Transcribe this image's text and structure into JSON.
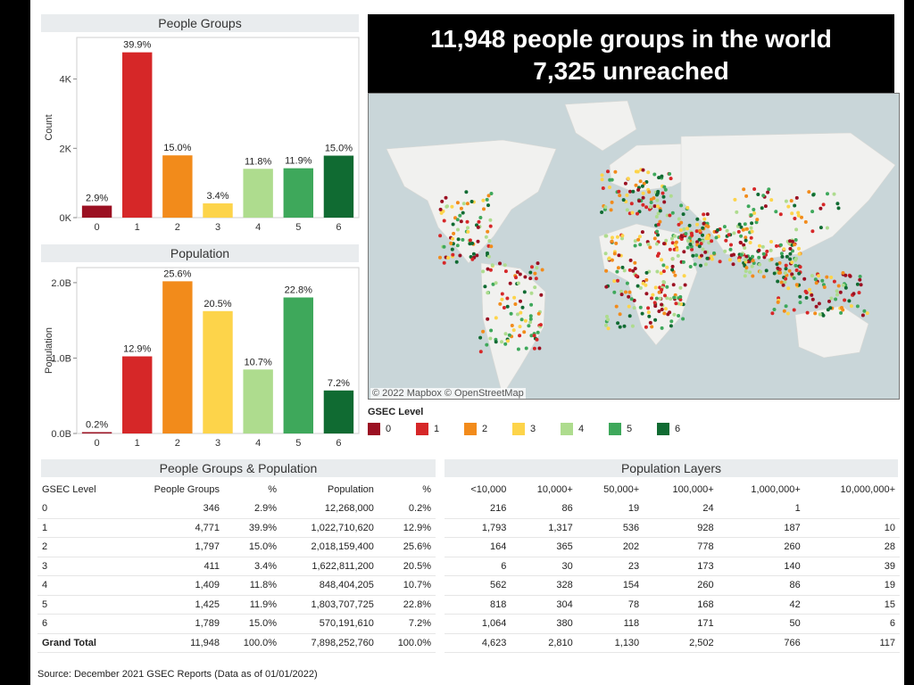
{
  "banner": {
    "line1": "11,948 people groups in the world",
    "line2": "7,325 unreached"
  },
  "colors": {
    "0": "#9b1022",
    "1": "#d62728",
    "2": "#f28b1b",
    "3": "#fdd44a",
    "4": "#aedc8e",
    "5": "#3ea85b",
    "6": "#106b32"
  },
  "chart_data": [
    {
      "type": "bar",
      "title": "People Groups",
      "ylabel": "Count",
      "xlabel": "",
      "categories": [
        "0",
        "1",
        "2",
        "3",
        "4",
        "5",
        "6"
      ],
      "values": [
        346,
        4771,
        1797,
        411,
        1409,
        1425,
        1789
      ],
      "data_labels": [
        "2.9%",
        "39.9%",
        "15.0%",
        "3.4%",
        "11.8%",
        "11.9%",
        "15.0%"
      ],
      "yticks": [
        0,
        2000,
        4000
      ],
      "ytick_labels": [
        "0K",
        "2K",
        "4K"
      ],
      "ylim": [
        0,
        5200
      ],
      "grid": false
    },
    {
      "type": "bar",
      "title": "Population",
      "ylabel": "Population",
      "xlabel": "",
      "categories": [
        "0",
        "1",
        "2",
        "3",
        "4",
        "5",
        "6"
      ],
      "values": [
        12268000,
        1022710620,
        2018159400,
        1622811200,
        848404205,
        1803707725,
        570191610
      ],
      "data_labels": [
        "0.2%",
        "12.9%",
        "25.6%",
        "20.5%",
        "10.7%",
        "22.8%",
        "7.2%"
      ],
      "yticks": [
        0,
        1000000000,
        2000000000
      ],
      "ytick_labels": [
        "0.0B",
        "1.0B",
        "2.0B"
      ],
      "ylim": [
        0,
        2200000000
      ],
      "grid": false
    }
  ],
  "map": {
    "credit": "© 2022 Mapbox  © OpenStreetMap"
  },
  "legend": {
    "title": "GSEC Level",
    "items": [
      "0",
      "1",
      "2",
      "3",
      "4",
      "5",
      "6"
    ]
  },
  "pg_table": {
    "title": "People Groups & Population",
    "headers": [
      "GSEC Level",
      "People Groups",
      "%",
      "Population",
      "%"
    ],
    "rows": [
      [
        "0",
        "346",
        "2.9%",
        "12,268,000",
        "0.2%"
      ],
      [
        "1",
        "4,771",
        "39.9%",
        "1,022,710,620",
        "12.9%"
      ],
      [
        "2",
        "1,797",
        "15.0%",
        "2,018,159,400",
        "25.6%"
      ],
      [
        "3",
        "411",
        "3.4%",
        "1,622,811,200",
        "20.5%"
      ],
      [
        "4",
        "1,409",
        "11.8%",
        "848,404,205",
        "10.7%"
      ],
      [
        "5",
        "1,425",
        "11.9%",
        "1,803,707,725",
        "22.8%"
      ],
      [
        "6",
        "1,789",
        "15.0%",
        "570,191,610",
        "7.2%"
      ]
    ],
    "total": [
      "Grand Total",
      "11,948",
      "100.0%",
      "7,898,252,760",
      "100.0%"
    ]
  },
  "layers_table": {
    "title": "Population Layers",
    "headers": [
      "<10,000",
      "10,000+",
      "50,000+",
      "100,000+",
      "1,000,000+",
      "10,000,000+"
    ],
    "rows": [
      [
        "216",
        "86",
        "19",
        "24",
        "1",
        ""
      ],
      [
        "1,793",
        "1,317",
        "536",
        "928",
        "187",
        "10"
      ],
      [
        "164",
        "365",
        "202",
        "778",
        "260",
        "28"
      ],
      [
        "6",
        "30",
        "23",
        "173",
        "140",
        "39"
      ],
      [
        "562",
        "328",
        "154",
        "260",
        "86",
        "19"
      ],
      [
        "818",
        "304",
        "78",
        "168",
        "42",
        "15"
      ],
      [
        "1,064",
        "380",
        "118",
        "171",
        "50",
        "6"
      ]
    ],
    "total": [
      "4,623",
      "2,810",
      "1,130",
      "2,502",
      "766",
      "117"
    ]
  },
  "source": "Source: December 2021 GSEC Reports (Data as of 01/01/2022)"
}
